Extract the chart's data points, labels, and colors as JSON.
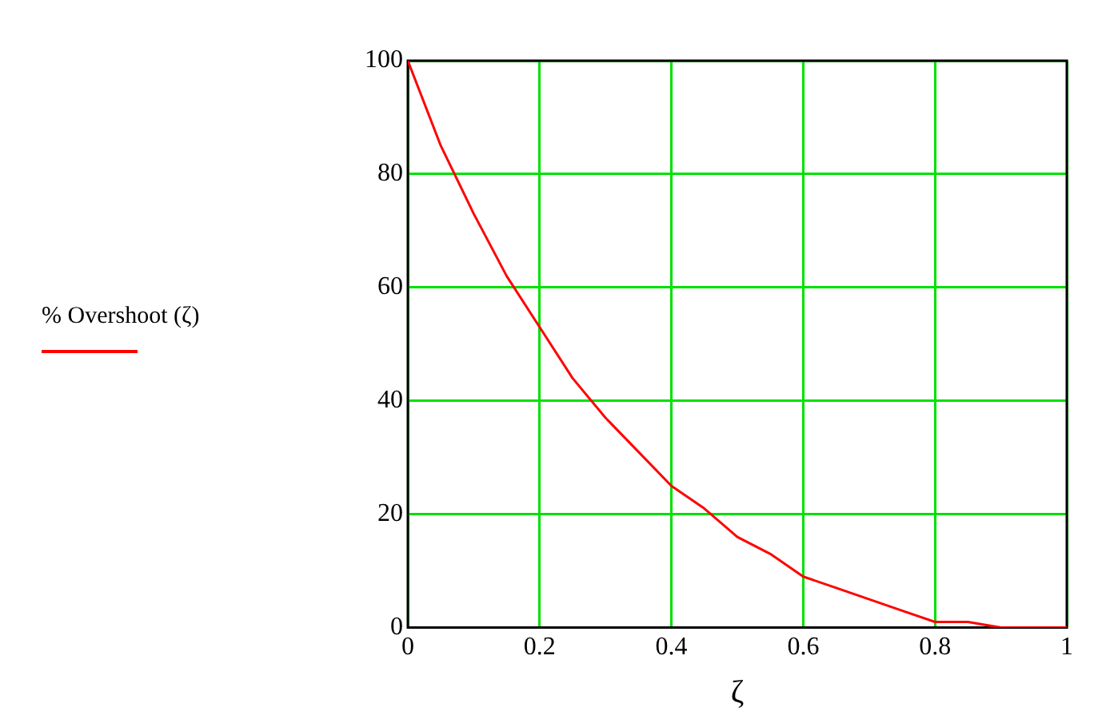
{
  "chart_data": {
    "type": "line",
    "xlabel": "ζ",
    "x": [
      0,
      0.05,
      0.1,
      0.15,
      0.2,
      0.25,
      0.3,
      0.35,
      0.4,
      0.45,
      0.5,
      0.55,
      0.6,
      0.65,
      0.7,
      0.75,
      0.8,
      0.85,
      0.9,
      0.95,
      1
    ],
    "series": [
      {
        "name": "% Overshoot (ζ)",
        "color": "#ff0000",
        "values": [
          100,
          85,
          73,
          62,
          53,
          44,
          37,
          31,
          25,
          21,
          16,
          13,
          9,
          7,
          5,
          3,
          1,
          1,
          0,
          0,
          0
        ]
      }
    ],
    "xlim": [
      0,
      1
    ],
    "xticks": [
      0,
      0.2,
      0.4,
      0.6,
      0.8,
      1
    ],
    "ylim": [
      0,
      100
    ],
    "yticks": [
      0,
      20,
      40,
      60,
      80,
      100
    ],
    "grid": true,
    "legend": "left",
    "marker": "none",
    "line_style": "solid"
  }
}
